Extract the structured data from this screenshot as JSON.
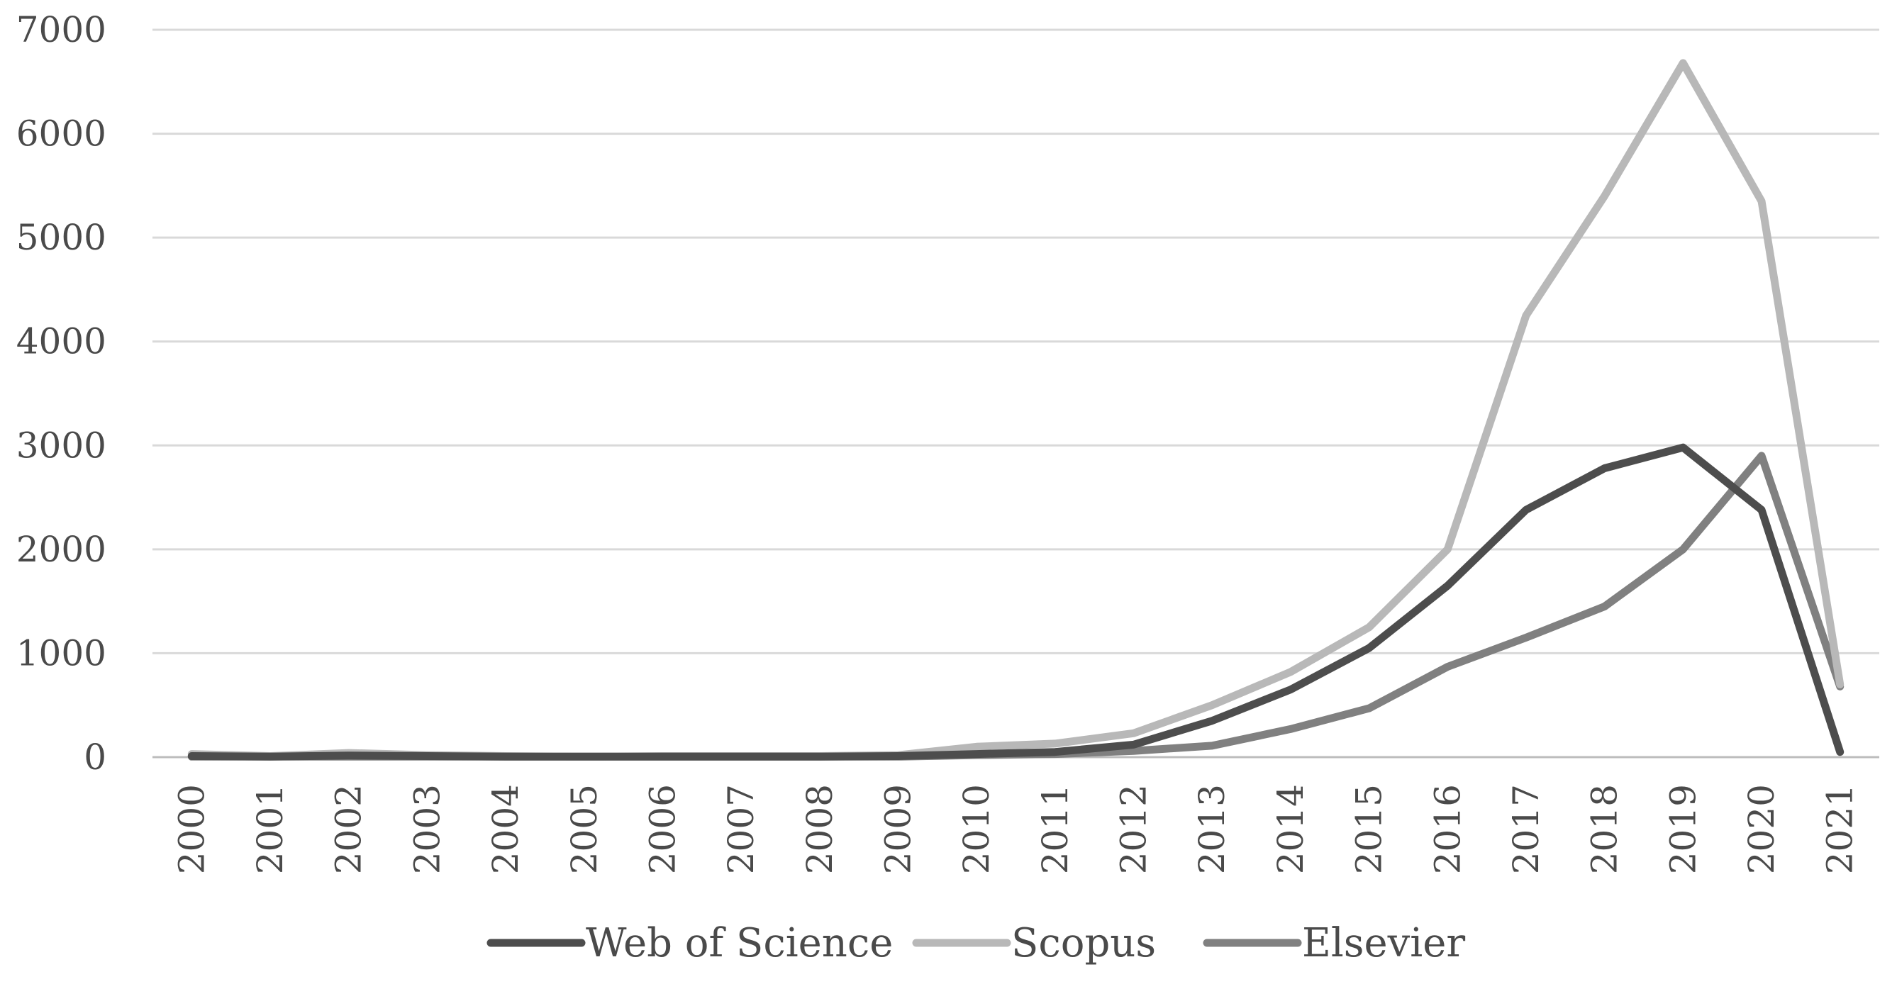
{
  "chart_data": {
    "type": "line",
    "title": "",
    "xlabel": "",
    "ylabel": "",
    "ylim": [
      0,
      7000
    ],
    "yticks": [
      0,
      1000,
      2000,
      3000,
      4000,
      5000,
      6000,
      7000
    ],
    "grid": true,
    "legend_position": "bottom",
    "categories": [
      "2000",
      "2001",
      "2002",
      "2003",
      "2004",
      "2005",
      "2006",
      "2007",
      "2008",
      "2009",
      "2010",
      "2011",
      "2012",
      "2013",
      "2014",
      "2015",
      "2016",
      "2017",
      "2018",
      "2019",
      "2020",
      "2021"
    ],
    "series": [
      {
        "name": "Web of Science",
        "color": "#4d4d4d",
        "values": [
          10,
          5,
          15,
          10,
          5,
          5,
          5,
          5,
          5,
          10,
          30,
          50,
          120,
          350,
          650,
          1050,
          1650,
          2380,
          2780,
          2980,
          2380,
          50
        ]
      },
      {
        "name": "Scopus",
        "color": "#b8b8b8",
        "values": [
          30,
          10,
          40,
          20,
          10,
          5,
          10,
          10,
          10,
          20,
          100,
          130,
          230,
          500,
          820,
          1250,
          2000,
          4250,
          5400,
          6680,
          5350,
          700
        ]
      },
      {
        "name": "Elsevier",
        "color": "#808080",
        "values": [
          5,
          5,
          5,
          5,
          5,
          5,
          5,
          5,
          5,
          5,
          20,
          30,
          60,
          110,
          270,
          470,
          870,
          1150,
          1450,
          2000,
          2900,
          680
        ]
      }
    ]
  }
}
